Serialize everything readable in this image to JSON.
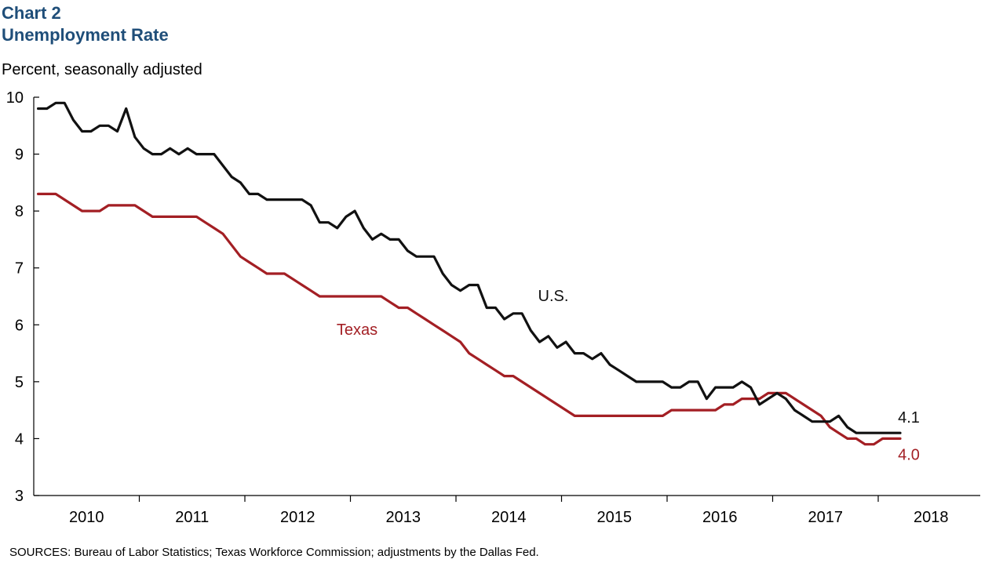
{
  "header": {
    "chart_number": "Chart 2",
    "title": "Unemployment  Rate",
    "subtitle": "Percent, seasonally adjusted"
  },
  "footer": {
    "source": "SOURCES: Bureau of Labor Statistics; Texas Workforce Commission; adjustments by the Dallas Fed."
  },
  "colors": {
    "us": "#111111",
    "texas": "#a31f24",
    "title": "#1f4e79"
  },
  "chart_data": {
    "type": "line",
    "title": "Unemployment  Rate",
    "ylabel": "Percent, seasonally adjusted",
    "xlabel": "",
    "ylim": [
      3,
      10
    ],
    "yticks": [
      3,
      4,
      5,
      6,
      7,
      8,
      9,
      10
    ],
    "x_start": "2010-01",
    "xticks": [
      "2010",
      "2011",
      "2012",
      "2013",
      "2014",
      "2015",
      "2016",
      "2017",
      "2018"
    ],
    "grid": false,
    "series": [
      {
        "name": "U.S.",
        "color": "#111111",
        "end_label": "4.1",
        "values": [
          9.8,
          9.8,
          9.9,
          9.9,
          9.6,
          9.4,
          9.4,
          9.5,
          9.5,
          9.4,
          9.8,
          9.3,
          9.1,
          9.0,
          9.0,
          9.1,
          9.0,
          9.1,
          9.0,
          9.0,
          9.0,
          8.8,
          8.6,
          8.5,
          8.3,
          8.3,
          8.2,
          8.2,
          8.2,
          8.2,
          8.2,
          8.1,
          7.8,
          7.8,
          7.7,
          7.9,
          8.0,
          7.7,
          7.5,
          7.6,
          7.5,
          7.5,
          7.3,
          7.2,
          7.2,
          7.2,
          6.9,
          6.7,
          6.6,
          6.7,
          6.7,
          6.3,
          6.3,
          6.1,
          6.2,
          6.2,
          5.9,
          5.7,
          5.8,
          5.6,
          5.7,
          5.5,
          5.5,
          5.4,
          5.5,
          5.3,
          5.2,
          5.1,
          5.0,
          5.0,
          5.0,
          5.0,
          4.9,
          4.9,
          5.0,
          5.0,
          4.7,
          4.9,
          4.9,
          4.9,
          5.0,
          4.9,
          4.6,
          4.7,
          4.8,
          4.7,
          4.5,
          4.4,
          4.3,
          4.3,
          4.3,
          4.4,
          4.2,
          4.1,
          4.1,
          4.1,
          4.1,
          4.1,
          4.1
        ]
      },
      {
        "name": "Texas",
        "color": "#a31f24",
        "end_label": "4.0",
        "values": [
          8.3,
          8.3,
          8.3,
          8.2,
          8.1,
          8.0,
          8.0,
          8.0,
          8.1,
          8.1,
          8.1,
          8.1,
          8.0,
          7.9,
          7.9,
          7.9,
          7.9,
          7.9,
          7.9,
          7.8,
          7.7,
          7.6,
          7.4,
          7.2,
          7.1,
          7.0,
          6.9,
          6.9,
          6.9,
          6.8,
          6.7,
          6.6,
          6.5,
          6.5,
          6.5,
          6.5,
          6.5,
          6.5,
          6.5,
          6.5,
          6.4,
          6.3,
          6.3,
          6.2,
          6.1,
          6.0,
          5.9,
          5.8,
          5.7,
          5.5,
          5.4,
          5.3,
          5.2,
          5.1,
          5.1,
          5.0,
          4.9,
          4.8,
          4.7,
          4.6,
          4.5,
          4.4,
          4.4,
          4.4,
          4.4,
          4.4,
          4.4,
          4.4,
          4.4,
          4.4,
          4.4,
          4.4,
          4.5,
          4.5,
          4.5,
          4.5,
          4.5,
          4.5,
          4.6,
          4.6,
          4.7,
          4.7,
          4.7,
          4.8,
          4.8,
          4.8,
          4.7,
          4.6,
          4.5,
          4.4,
          4.2,
          4.1,
          4.0,
          4.0,
          3.9,
          3.9,
          4.0,
          4.0,
          4.0
        ]
      }
    ]
  }
}
